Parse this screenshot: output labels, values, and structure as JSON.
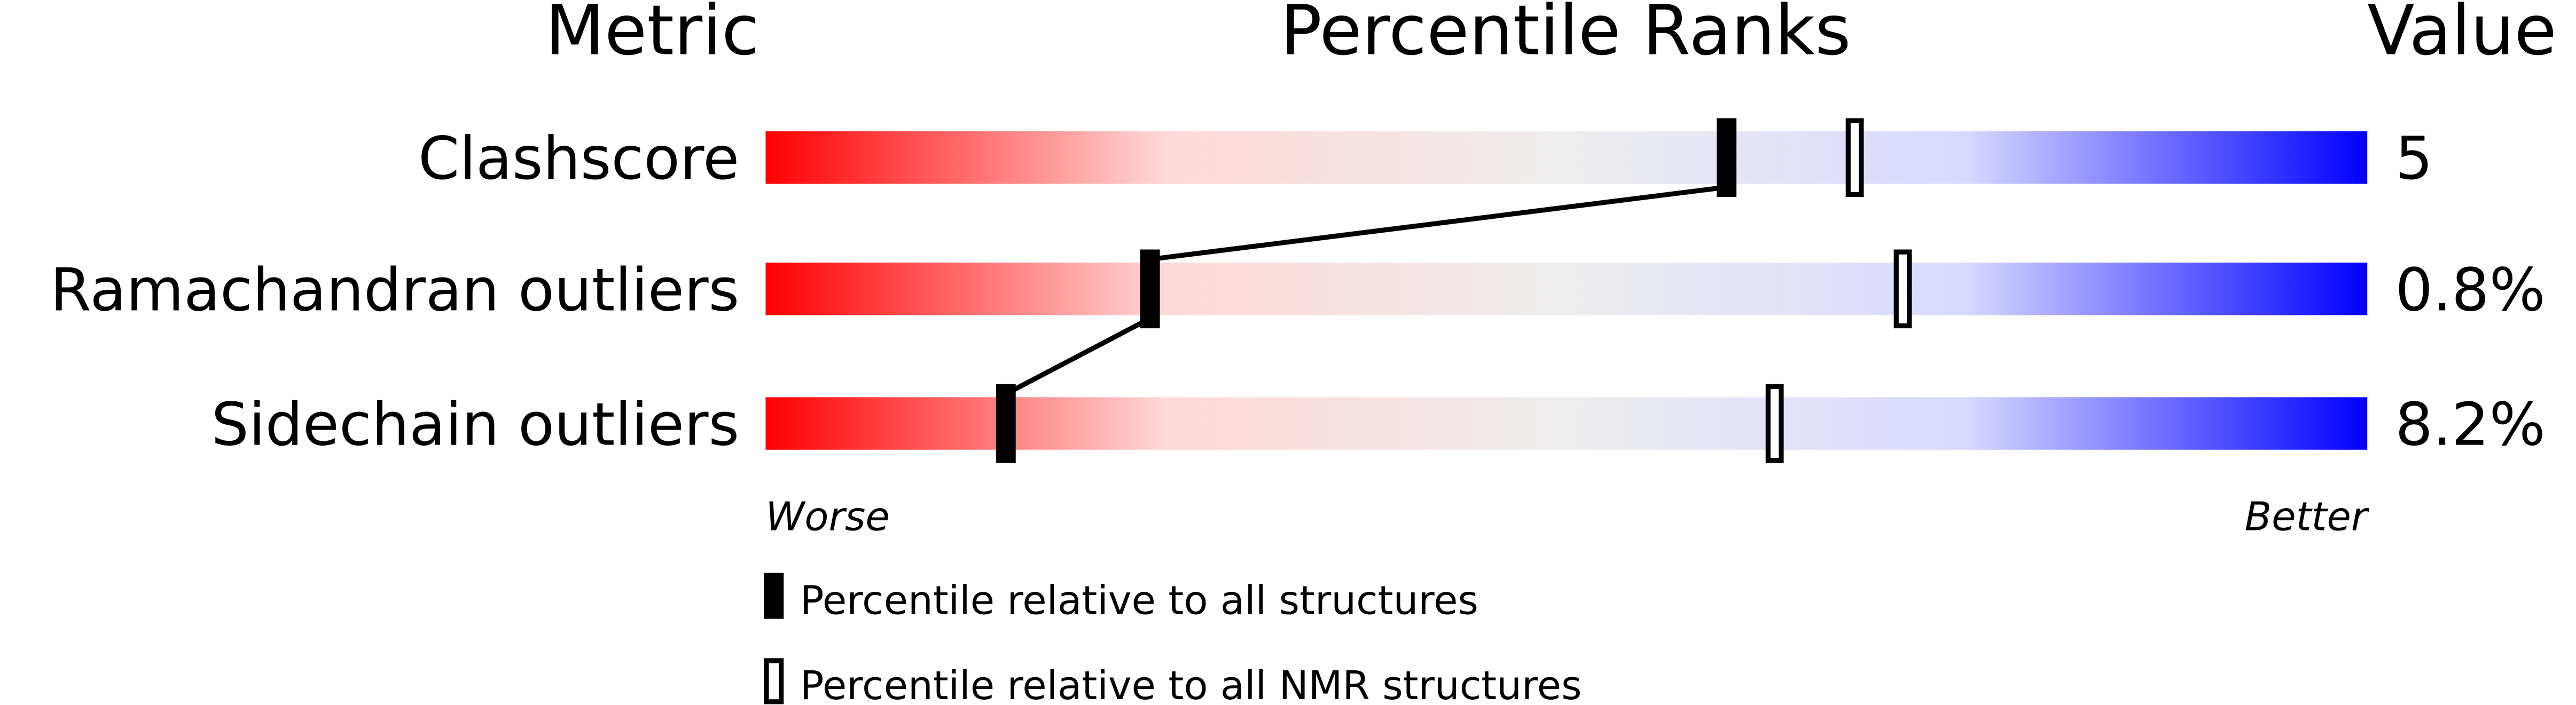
{
  "chart_data": {
    "type": "percentile-bar",
    "headers": {
      "metric": "Metric",
      "ranks": "Percentile Ranks",
      "value": "Value"
    },
    "xlim": [
      0,
      100
    ],
    "gradient_colors": [
      "#ff0000",
      "#ffd8d8",
      "#eeeeee",
      "#d8d8ff",
      "#0000ff"
    ],
    "metrics": [
      {
        "name": "Clashscore",
        "value": "5",
        "percentile_all": 60,
        "percentile_nmr": 68
      },
      {
        "name": "Ramachandran outliers",
        "value": "0.8%",
        "percentile_all": 24,
        "percentile_nmr": 71
      },
      {
        "name": "Sidechain outliers",
        "value": "8.2%",
        "percentile_all": 15,
        "percentile_nmr": 63
      }
    ],
    "axis_labels": {
      "left": "Worse",
      "right": "Better"
    },
    "legend": {
      "all": "Percentile relative to all structures",
      "nmr": "Percentile relative to all NMR structures"
    }
  }
}
